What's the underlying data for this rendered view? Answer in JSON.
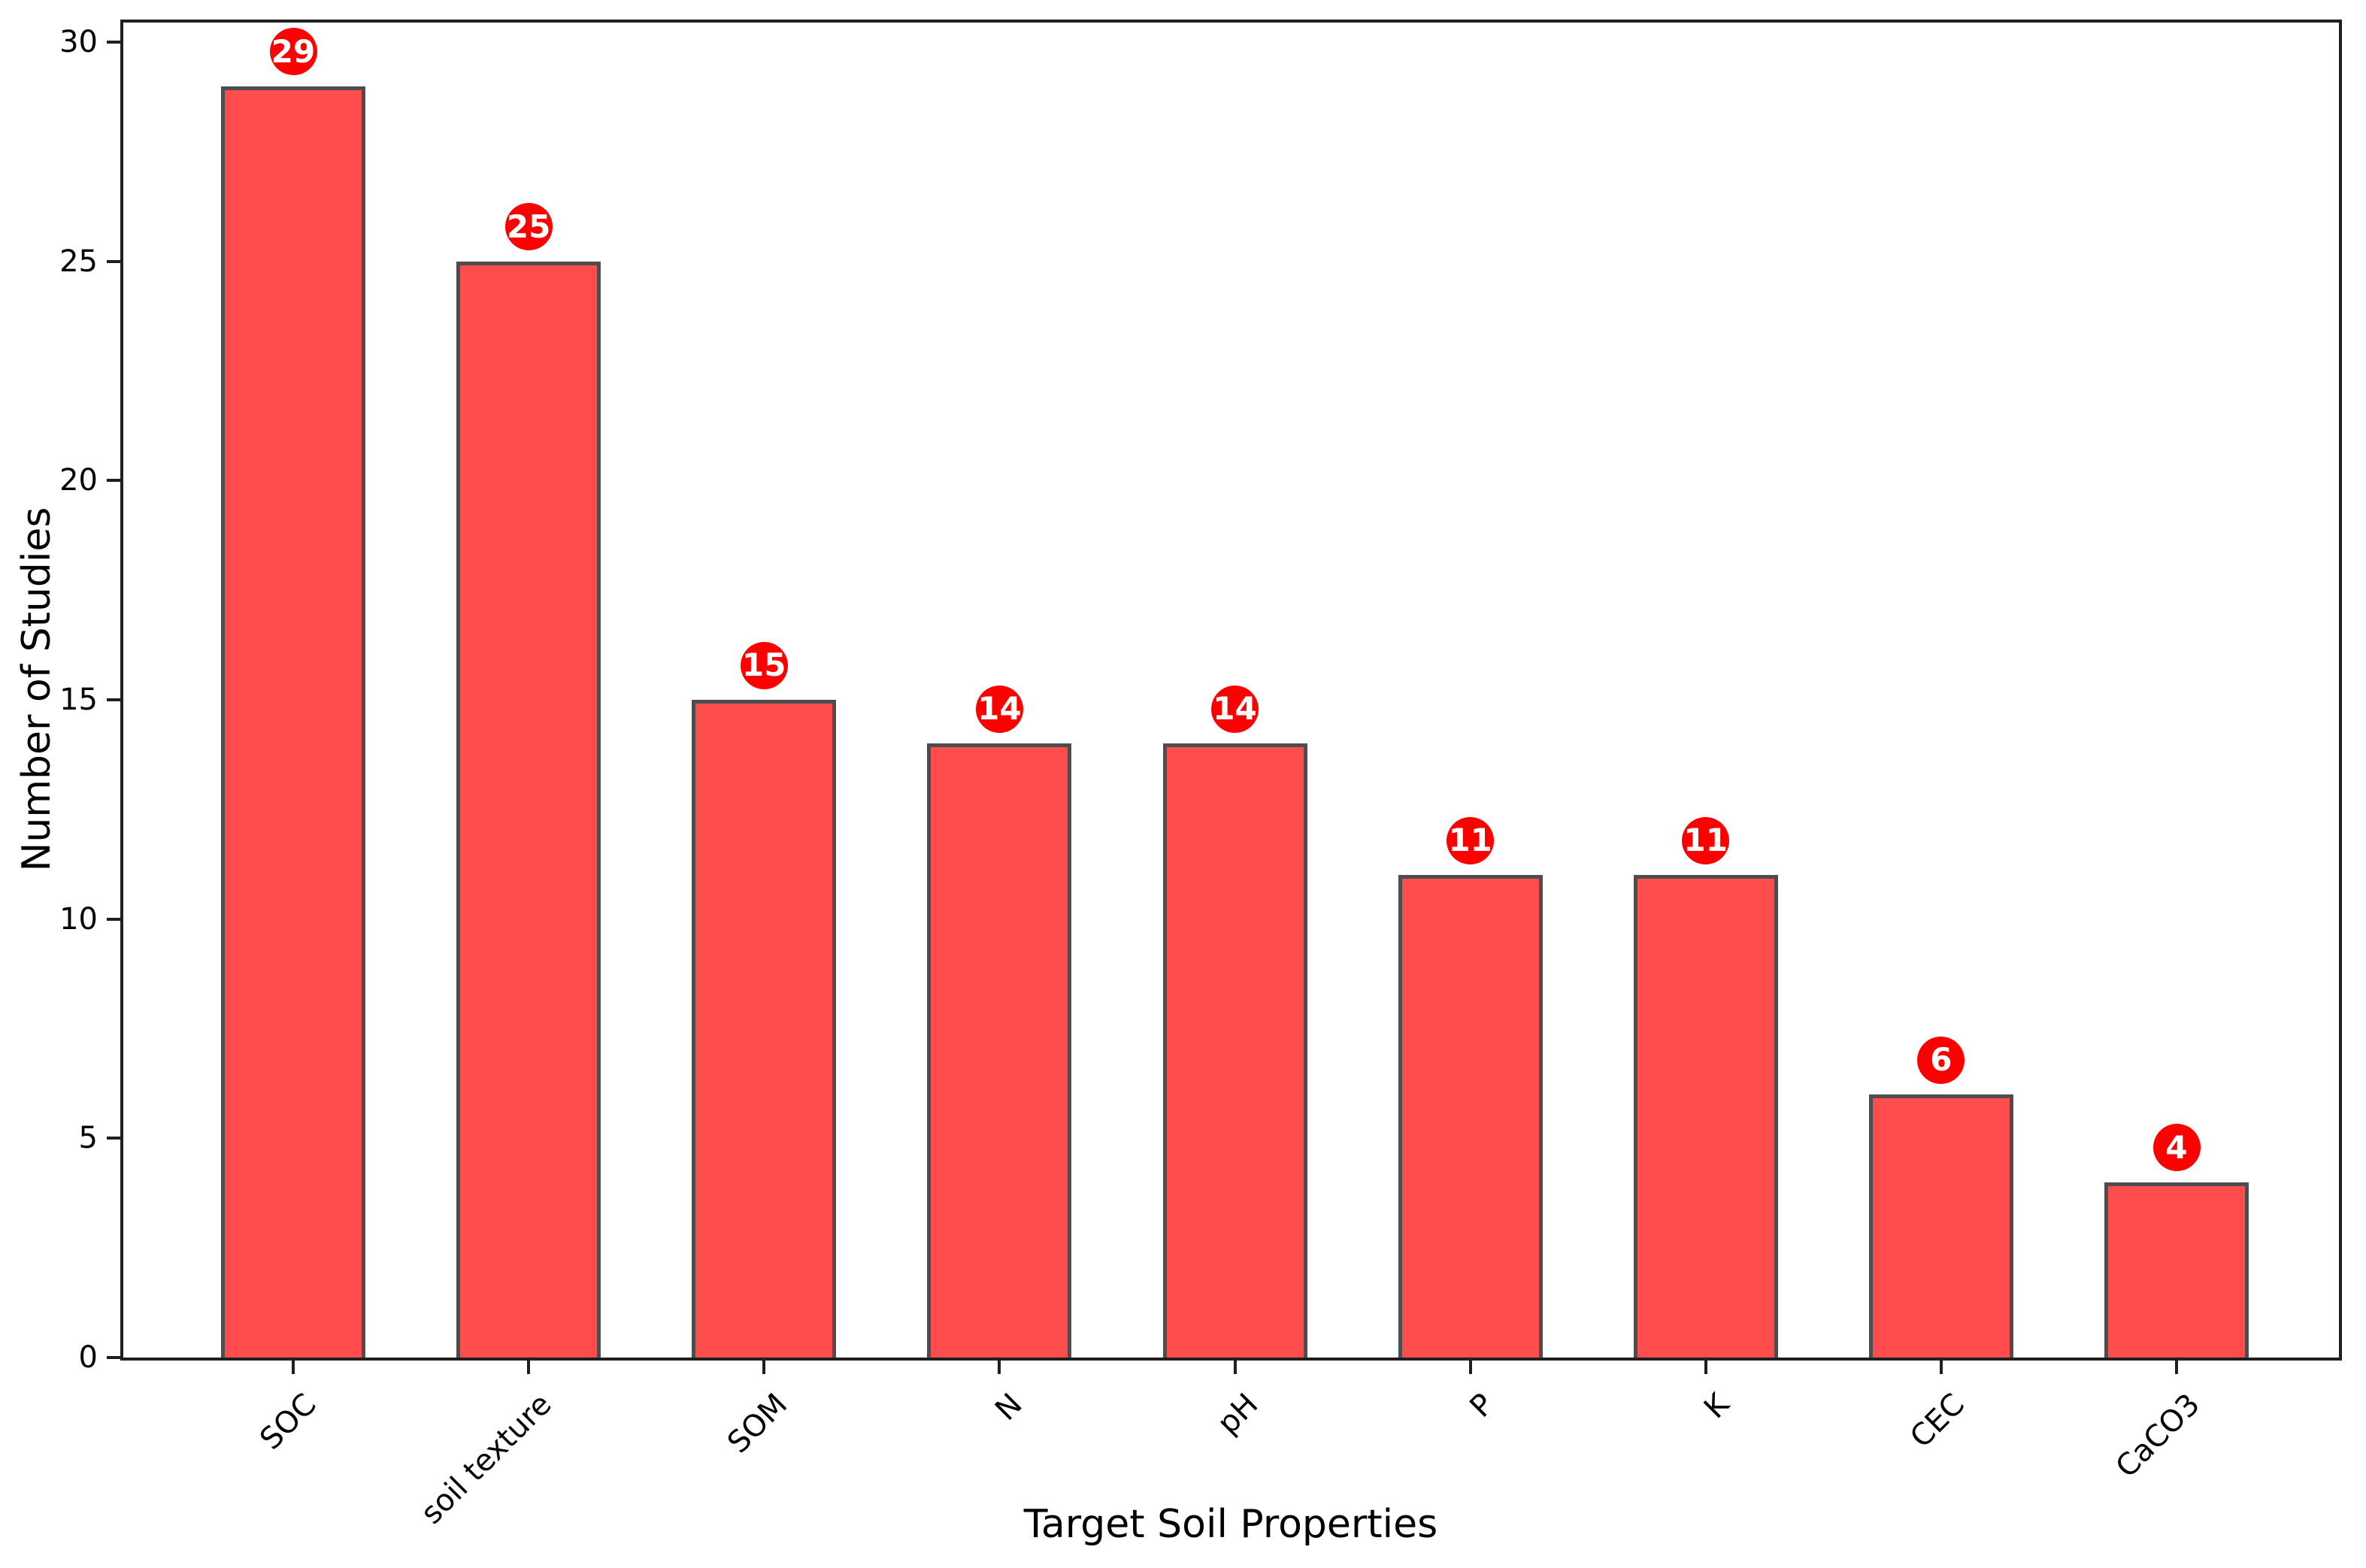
{
  "figure": {
    "background_color": "#ffffff",
    "spine_color": "#1f1f1f"
  },
  "chart_data": {
    "type": "bar",
    "title": "",
    "xlabel": "Target Soil Properties",
    "ylabel": "Number of Studies",
    "categories": [
      "SOC",
      "soil texture",
      "SOM",
      "N",
      "pH",
      "P",
      "K",
      "CEC",
      "CaCO3"
    ],
    "values": [
      29,
      25,
      15,
      14,
      14,
      11,
      11,
      6,
      4
    ],
    "data_labels": [
      "29",
      "25",
      "15",
      "14",
      "14",
      "11",
      "11",
      "6",
      "4"
    ],
    "ylim": [
      0,
      30.45
    ],
    "yticks": [
      0,
      5,
      10,
      15,
      20,
      25,
      30
    ],
    "grid": false,
    "legend": "none",
    "x_tick_rotation_deg": 45,
    "bar_fill_color": "#ff4d4d",
    "bar_edge_color": "#4d4d4d",
    "badge_fill_color": "#ff0000",
    "badge_text_color": "#ffffff",
    "tick_label_color": "#000000",
    "axis_label_color": "#000000"
  }
}
